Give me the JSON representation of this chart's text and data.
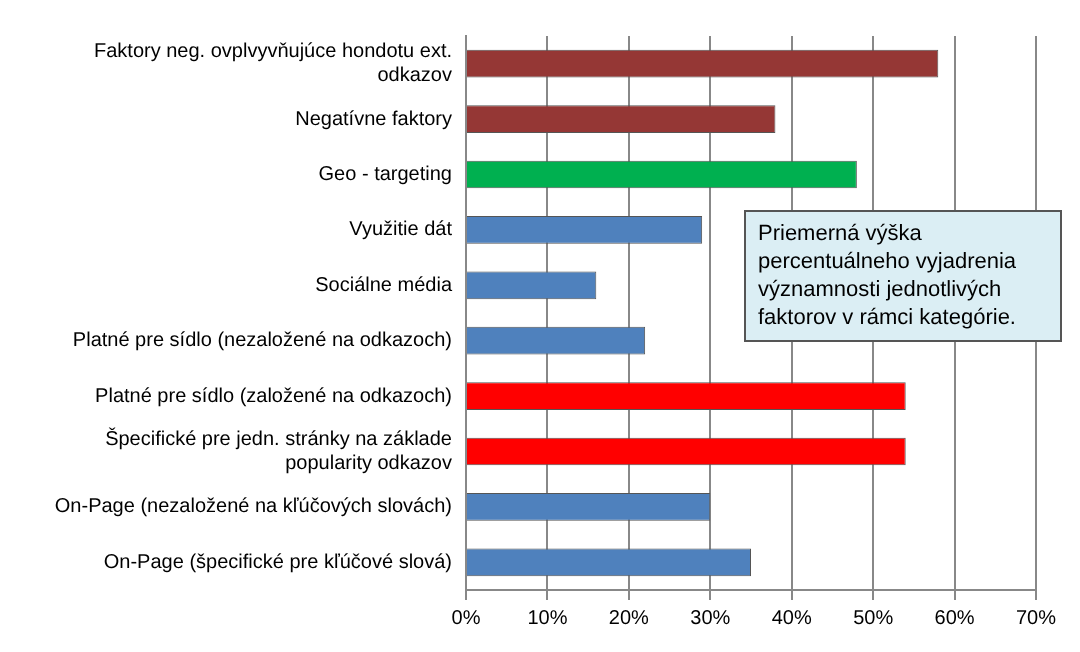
{
  "chart_data": {
    "type": "bar",
    "orientation": "horizontal",
    "categories": [
      "Faktory neg. ovplvyvňujúce hondotu ext. odkazov",
      "Negatívne faktory",
      "Geo - targeting",
      "Využitie dát",
      "Sociálne média",
      "Platné pre sídlo (nezaložené na odkazoch)",
      "Platné pre sídlo (založené na odkazoch)",
      "Špecifické pre jedn. stránky na základe popularity odkazov",
      "On-Page (nezaložené na kľúčových slovách)",
      "On-Page (špecifické pre kľúčové slová)"
    ],
    "values": [
      58,
      38,
      48,
      29,
      16,
      22,
      54,
      54,
      30,
      35
    ],
    "colors": [
      "#953735",
      "#953735",
      "#00b050",
      "#4f81bd",
      "#4f81bd",
      "#4f81bd",
      "#ff0000",
      "#ff0000",
      "#4f81bd",
      "#4f81bd"
    ],
    "xlim": [
      0,
      70
    ],
    "xticks": [
      {
        "value": 0,
        "label": "0%"
      },
      {
        "value": 10,
        "label": "10%"
      },
      {
        "value": 20,
        "label": "20%"
      },
      {
        "value": 30,
        "label": "30%"
      },
      {
        "value": 40,
        "label": "40%"
      },
      {
        "value": 50,
        "label": "50%"
      },
      {
        "value": 60,
        "label": "60%"
      },
      {
        "value": 70,
        "label": "70%"
      }
    ],
    "grid": "x",
    "legend": false,
    "annotations": [
      "Priemerná výška percentuálneho vyjadrenia významnosti jednotlivých faktorov v rámci kategórie."
    ]
  }
}
